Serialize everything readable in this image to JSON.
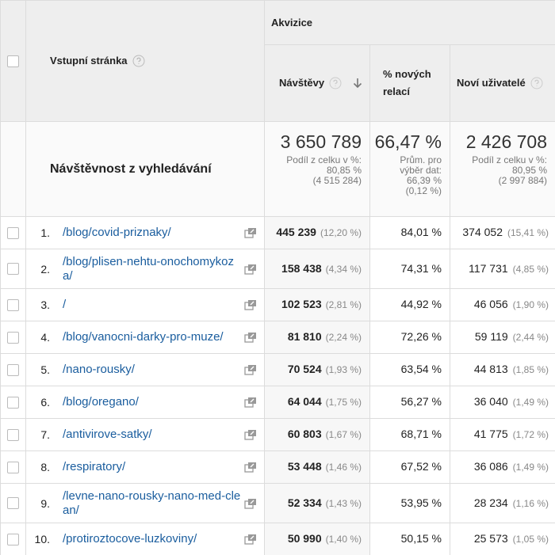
{
  "header": {
    "group": "Akvizice",
    "landing_page": "Vstupní stránka",
    "columns": [
      "Návštěvy",
      "% nových relací",
      "Noví uživatelé"
    ]
  },
  "summary": {
    "label": "Návštěvnost z vyhledávání",
    "cells": [
      {
        "value": "3 650 789",
        "note": "Podíl z celku v %:",
        "share": "80,85 %",
        "total": "(4 515 284)"
      },
      {
        "value": "66,47 %",
        "note": "Prům. pro výběr dat:",
        "share": "66,39 %",
        "total": "(0,12 %)"
      },
      {
        "value": "2 426 708",
        "note": "Podíl z celku v %:",
        "share": "80,95 %",
        "total": "(2 997 884)"
      }
    ]
  },
  "rows": [
    {
      "index": "1.",
      "page": "/blog/covid-priznaky/",
      "visits": "445 239",
      "visits_pct": "(12,20 %)",
      "new_pct": "84,01 %",
      "new_users": "374 052",
      "new_users_pct": "(15,41 %)"
    },
    {
      "index": "2.",
      "page": "/blog/plisen-nehtu-onochomykoza/",
      "visits": "158 438",
      "visits_pct": "(4,34 %)",
      "new_pct": "74,31 %",
      "new_users": "117 731",
      "new_users_pct": "(4,85 %)"
    },
    {
      "index": "3.",
      "page": "/",
      "visits": "102 523",
      "visits_pct": "(2,81 %)",
      "new_pct": "44,92 %",
      "new_users": "46 056",
      "new_users_pct": "(1,90 %)"
    },
    {
      "index": "4.",
      "page": "/blog/vanocni-darky-pro-muze/",
      "visits": "81 810",
      "visits_pct": "(2,24 %)",
      "new_pct": "72,26 %",
      "new_users": "59 119",
      "new_users_pct": "(2,44 %)"
    },
    {
      "index": "5.",
      "page": "/nano-rousky/",
      "visits": "70 524",
      "visits_pct": "(1,93 %)",
      "new_pct": "63,54 %",
      "new_users": "44 813",
      "new_users_pct": "(1,85 %)"
    },
    {
      "index": "6.",
      "page": "/blog/oregano/",
      "visits": "64 044",
      "visits_pct": "(1,75 %)",
      "new_pct": "56,27 %",
      "new_users": "36 040",
      "new_users_pct": "(1,49 %)"
    },
    {
      "index": "7.",
      "page": "/antivirove-satky/",
      "visits": "60 803",
      "visits_pct": "(1,67 %)",
      "new_pct": "68,71 %",
      "new_users": "41 775",
      "new_users_pct": "(1,72 %)"
    },
    {
      "index": "8.",
      "page": "/respiratory/",
      "visits": "53 448",
      "visits_pct": "(1,46 %)",
      "new_pct": "67,52 %",
      "new_users": "36 086",
      "new_users_pct": "(1,49 %)"
    },
    {
      "index": "9.",
      "page": "/levne-nano-rousky-nano-med-clean/",
      "visits": "52 334",
      "visits_pct": "(1,43 %)",
      "new_pct": "53,95 %",
      "new_users": "28 234",
      "new_users_pct": "(1,16 %)"
    },
    {
      "index": "10.",
      "page": "/protiroztocove-luzkoviny/",
      "visits": "50 990",
      "visits_pct": "(1,40 %)",
      "new_pct": "50,15 %",
      "new_users": "25 573",
      "new_users_pct": "(1,05 %)"
    }
  ]
}
